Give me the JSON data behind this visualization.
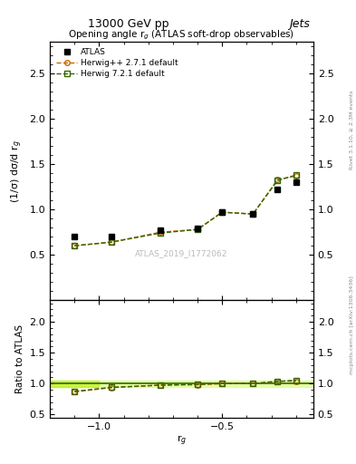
{
  "title_top_left": "13000 GeV pp",
  "title_top_right": "Jets",
  "plot_title": "Opening angle r$_g$ (ATLAS soft-drop observables)",
  "ylabel_main": "(1/σ) dσ/d r$_g$",
  "ylabel_ratio": "Ratio to ATLAS",
  "xlabel": "r$_g$",
  "watermark": "ATLAS_2019_I1772062",
  "rivet_text": "Rivet 3.1.10, ≥ 2.3M events",
  "mcplots_text": "mcplots.cern.ch [arXiv:1306.3436]",
  "x_data": [
    -1.1,
    -0.95,
    -0.75,
    -0.6,
    -0.5,
    -0.375,
    -0.275,
    -0.2
  ],
  "atlas_y": [
    0.7,
    0.7,
    0.77,
    0.79,
    0.97,
    0.95,
    1.22,
    1.3
  ],
  "herwig_pp_y": [
    0.6,
    0.64,
    0.75,
    0.78,
    0.97,
    0.95,
    1.33,
    1.37
  ],
  "herwig72_y": [
    0.6,
    0.64,
    0.74,
    0.78,
    0.97,
    0.95,
    1.32,
    1.38
  ],
  "ratio_herwig_pp": [
    0.865,
    0.935,
    0.975,
    0.98,
    1.0,
    1.0,
    1.04,
    1.04
  ],
  "ratio_herwig72": [
    0.875,
    0.94,
    0.975,
    0.99,
    1.0,
    1.0,
    1.035,
    1.055
  ],
  "color_atlas": "#000000",
  "color_herwig_pp": "#cc6600",
  "color_herwig72": "#336600",
  "color_band_light": "#ddff88",
  "color_band_dark": "#bbee00",
  "color_band_line": "#336600",
  "xlim": [
    -1.2,
    -0.13
  ],
  "ylim_main": [
    0.0,
    2.85
  ],
  "ylim_ratio": [
    0.45,
    2.35
  ],
  "yticks_main": [
    0.5,
    1.0,
    1.5,
    2.0,
    2.5
  ],
  "yticks_ratio": [
    0.5,
    1.0,
    1.5,
    2.0
  ],
  "xticks": [
    -1.0,
    -0.5
  ]
}
